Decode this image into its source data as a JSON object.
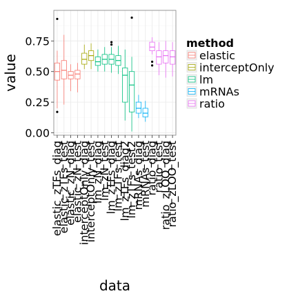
{
  "chart_data": {
    "type": "boxplot",
    "xlabel": "data",
    "ylabel": "value",
    "yticks": [
      "0.00",
      "0.25",
      "0.50",
      "0.75"
    ],
    "ylim": [
      -0.02,
      1.0
    ],
    "legend": {
      "title": "method",
      "position": "right",
      "entries": [
        {
          "label": "elastic",
          "color": "#F8766D"
        },
        {
          "label": "interceptOnly",
          "color": "#A3A500"
        },
        {
          "label": "lm",
          "color": "#00BF7D"
        },
        {
          "label": "mRNAs",
          "color": "#00B0F6"
        },
        {
          "label": "ratio",
          "color": "#E76BF3"
        }
      ]
    },
    "categories": [
      {
        "label": "elastic_zTFs_diag",
        "method": "elastic",
        "q1": 0.43,
        "median": 0.5,
        "q3": 0.57,
        "min": 0.2,
        "max": 0.67,
        "outliers": [
          0.17,
          0.93
        ]
      },
      {
        "label": "elastic_zTFs_test",
        "method": "elastic",
        "q1": 0.44,
        "median": 0.51,
        "q3": 0.59,
        "min": 0.23,
        "max": 0.8,
        "outliers": []
      },
      {
        "label": "elastic_zN_diag",
        "method": "elastic",
        "q1": 0.44,
        "median": 0.47,
        "q3": 0.5,
        "min": 0.34,
        "max": 0.56,
        "outliers": []
      },
      {
        "label": "elastic_zN_test",
        "method": "elastic",
        "q1": 0.44,
        "median": 0.48,
        "q3": 0.51,
        "min": 0.33,
        "max": 0.57,
        "outliers": []
      },
      {
        "label": "interceptOnly_diag",
        "method": "interceptOnly",
        "q1": 0.56,
        "median": 0.6,
        "q3": 0.65,
        "min": 0.52,
        "max": 0.72,
        "outliers": []
      },
      {
        "label": "interceptOnly_test",
        "method": "interceptOnly",
        "q1": 0.59,
        "median": 0.63,
        "q3": 0.67,
        "min": 0.52,
        "max": 0.73,
        "outliers": []
      },
      {
        "label": "lm_zN_diag",
        "method": "lm",
        "q1": 0.55,
        "median": 0.58,
        "q3": 0.62,
        "min": 0.5,
        "max": 0.68,
        "outliers": []
      },
      {
        "label": "lm_zN_test",
        "method": "lm",
        "q1": 0.56,
        "median": 0.6,
        "q3": 0.64,
        "min": 0.5,
        "max": 0.7,
        "outliers": []
      },
      {
        "label": "lm_zTFs_diag",
        "method": "lm",
        "q1": 0.56,
        "median": 0.6,
        "q3": 0.64,
        "min": 0.49,
        "max": 0.7,
        "outliers": [
          0.72,
          0.74
        ]
      },
      {
        "label": "lm_zTFs_test",
        "method": "lm",
        "q1": 0.55,
        "median": 0.59,
        "q3": 0.63,
        "min": 0.48,
        "max": 0.71,
        "outliers": []
      },
      {
        "label": "lm_zTFs_diag2",
        "method": "lm",
        "q1": 0.25,
        "median": 0.47,
        "q3": 0.53,
        "min": 0.1,
        "max": 0.68,
        "outliers": []
      },
      {
        "label": "lm_zTFs_test2",
        "method": "lm",
        "q1": 0.17,
        "median": 0.39,
        "q3": 0.5,
        "min": 0.01,
        "max": 0.62,
        "outliers": [
          0.94
        ]
      },
      {
        "label": "mRNAs_diag",
        "method": "mRNAs",
        "q1": 0.16,
        "median": 0.2,
        "q3": 0.25,
        "min": 0.12,
        "max": 0.31,
        "outliers": []
      },
      {
        "label": "mRNAs_test",
        "method": "mRNAs",
        "q1": 0.13,
        "median": 0.16,
        "q3": 0.2,
        "min": 0.09,
        "max": 0.26,
        "outliers": []
      },
      {
        "label": "ratio_diag",
        "method": "ratio",
        "q1": 0.67,
        "median": 0.7,
        "q3": 0.74,
        "min": 0.64,
        "max": 0.78,
        "outliers": [
          0.55,
          0.58
        ]
      },
      {
        "label": "ratio_test",
        "method": "ratio",
        "q1": 0.56,
        "median": 0.62,
        "q3": 0.67,
        "min": 0.47,
        "max": 0.74,
        "outliers": []
      },
      {
        "label": "ratio_zLOO_diag",
        "method": "ratio",
        "q1": 0.57,
        "median": 0.63,
        "q3": 0.67,
        "min": 0.45,
        "max": 0.75,
        "outliers": []
      },
      {
        "label": "ratio_zLOO_test",
        "method": "ratio",
        "q1": 0.56,
        "median": 0.62,
        "q3": 0.67,
        "min": 0.46,
        "max": 0.74,
        "outliers": []
      }
    ]
  }
}
